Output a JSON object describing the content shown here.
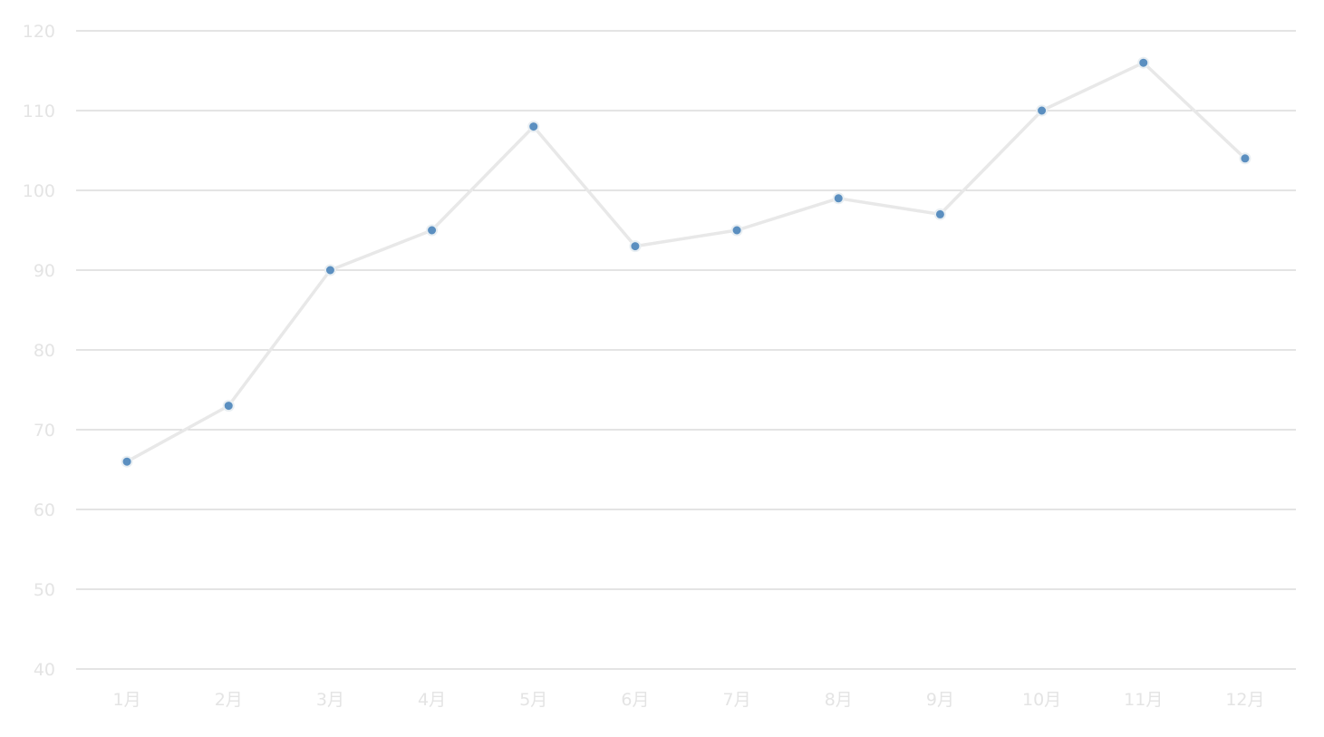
{
  "chart_data": {
    "type": "line",
    "title": "",
    "xlabel": "",
    "ylabel": "",
    "categories": [
      "1月",
      "2月",
      "3月",
      "4月",
      "5月",
      "6月",
      "7月",
      "8月",
      "9月",
      "10月",
      "11月",
      "12月"
    ],
    "series": [
      {
        "values": [
          66,
          73,
          90,
          95,
          108,
          93,
          95,
          99,
          97,
          110,
          116,
          104
        ]
      }
    ],
    "ylim": [
      40,
      120
    ],
    "yticks": [
      40,
      50,
      60,
      70,
      80,
      90,
      100,
      110,
      120
    ],
    "grid": "horizontal",
    "legend": "none",
    "colors": {
      "line": "#e8e8e8",
      "marker": "#5b8fc0",
      "marker_border": "#e8eef2",
      "grid": "#c8c8c8",
      "tick_label": "#e4e4e4"
    }
  }
}
